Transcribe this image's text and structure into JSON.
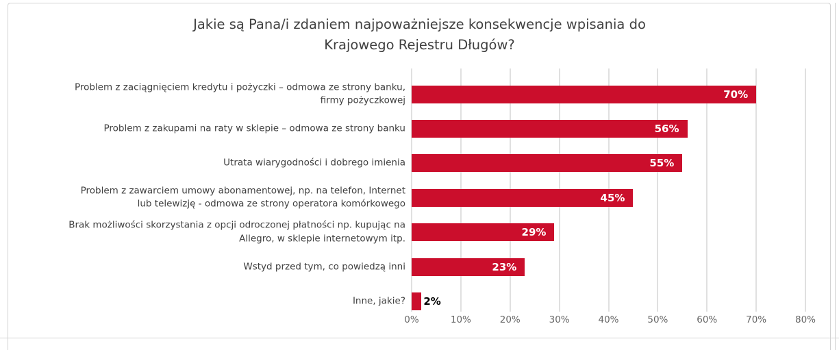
{
  "chart_data": {
    "type": "bar",
    "orientation": "horizontal",
    "title": "Jakie są Pana/i zdaniem najpoważniejsze konsekwencje wpisania do\nKrajowego Rejestru Długów?",
    "categories": [
      "Problem z zaciągnięciem kredytu i pożyczki – odmowa ze strony banku,\nfirmy pożyczkowej",
      "Problem z zakupami na raty w sklepie – odmowa ze strony banku",
      "Utrata wiarygodności i dobrego imienia",
      "Problem z zawarciem umowy abonamentowej, np. na telefon, Internet\nlub telewizję - odmowa ze strony operatora komórkowego",
      "Brak możliwości skorzystania z opcji odroczonej płatności np. kupując na\nAllegro, w sklepie internetowym itp.",
      "Wstyd przed tym, co powiedzą inni",
      "Inne, jakie?"
    ],
    "values": [
      70,
      56,
      55,
      45,
      29,
      23,
      2
    ],
    "value_labels": [
      "70%",
      "56%",
      "55%",
      "45%",
      "29%",
      "23%",
      "2%"
    ],
    "x_ticks": [
      "0%",
      "10%",
      "20%",
      "30%",
      "40%",
      "50%",
      "60%",
      "70%",
      "80%"
    ],
    "xlim": [
      0,
      80
    ],
    "grid": "vertical",
    "legend": false,
    "colors": {
      "bar": "#cb0e2c",
      "value_label_inside": "#ffffff",
      "value_label_outside": "#000000",
      "title_text": "#404040",
      "category_text": "#404040",
      "tick_text": "#666666",
      "gridline": "#e0e0e0",
      "frame_border": "#d2d2d2",
      "background": "#ffffff"
    }
  }
}
